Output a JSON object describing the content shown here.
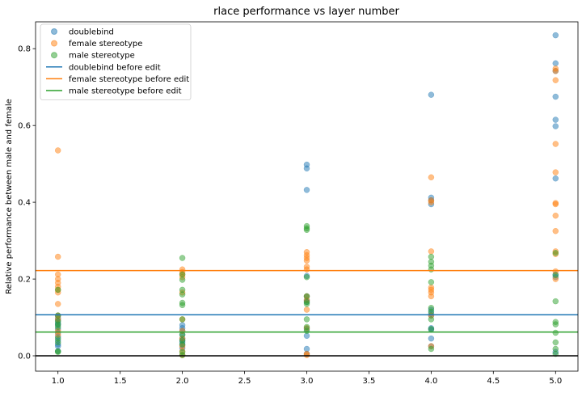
{
  "chart_data": {
    "type": "scatter",
    "title": "rlace performance vs layer number",
    "xlabel": "",
    "ylabel": "Relative performance between male and female",
    "xlim": [
      0.82,
      5.18
    ],
    "ylim": [
      -0.04,
      0.87
    ],
    "xticks": [
      "1.0",
      "1.5",
      "2.0",
      "2.5",
      "3.0",
      "3.5",
      "4.0",
      "4.5",
      "5.0"
    ],
    "yticks": [
      "0.0",
      "0.2",
      "0.4",
      "0.6",
      "0.8"
    ],
    "legend_position": "top-left",
    "grid": false,
    "series": [
      {
        "name": "doublebind",
        "color": "#1f77b4",
        "points": [
          [
            1,
            0.105
          ],
          [
            1,
            0.098
          ],
          [
            1,
            0.092
          ],
          [
            1,
            0.085
          ],
          [
            1,
            0.08
          ],
          [
            1,
            0.07
          ],
          [
            1,
            0.06
          ],
          [
            1,
            0.05
          ],
          [
            1,
            0.04
          ],
          [
            1,
            0.03
          ],
          [
            1,
            0.025
          ],
          [
            1,
            0.012
          ],
          [
            2,
            0.08
          ],
          [
            2,
            0.072
          ],
          [
            2,
            0.065
          ],
          [
            2,
            0.055
          ],
          [
            2,
            0.045
          ],
          [
            2,
            0.04
          ],
          [
            2,
            0.035
          ],
          [
            2,
            0.028
          ],
          [
            2,
            0.02
          ],
          [
            3,
            0.498
          ],
          [
            3,
            0.488
          ],
          [
            3,
            0.432
          ],
          [
            3,
            0.208
          ],
          [
            3,
            0.155
          ],
          [
            3,
            0.145
          ],
          [
            3,
            0.14
          ],
          [
            3,
            0.07
          ],
          [
            3,
            0.052
          ],
          [
            3,
            0.018
          ],
          [
            3,
            0.005
          ],
          [
            4,
            0.68
          ],
          [
            4,
            0.412
          ],
          [
            4,
            0.405
          ],
          [
            4,
            0.395
          ],
          [
            4,
            0.12
          ],
          [
            4,
            0.11
          ],
          [
            4,
            0.105
          ],
          [
            4,
            0.072
          ],
          [
            4,
            0.068
          ],
          [
            4,
            0.045
          ],
          [
            4,
            0.025
          ],
          [
            5,
            0.835
          ],
          [
            5,
            0.762
          ],
          [
            5,
            0.742
          ],
          [
            5,
            0.675
          ],
          [
            5,
            0.615
          ],
          [
            5,
            0.598
          ],
          [
            5,
            0.462
          ],
          [
            5,
            0.212
          ],
          [
            5,
            0.205
          ],
          [
            5,
            0.01
          ]
        ]
      },
      {
        "name": "female stereotype",
        "color": "#ff7f0e",
        "points": [
          [
            1,
            0.535
          ],
          [
            1,
            0.258
          ],
          [
            1,
            0.212
          ],
          [
            1,
            0.2
          ],
          [
            1,
            0.19
          ],
          [
            1,
            0.18
          ],
          [
            1,
            0.172
          ],
          [
            1,
            0.165
          ],
          [
            1,
            0.135
          ],
          [
            1,
            0.105
          ],
          [
            1,
            0.095
          ],
          [
            1,
            0.065
          ],
          [
            1,
            0.055
          ],
          [
            2,
            0.225
          ],
          [
            2,
            0.218
          ],
          [
            2,
            0.212
          ],
          [
            2,
            0.205
          ],
          [
            2,
            0.165
          ],
          [
            2,
            0.095
          ],
          [
            2,
            0.065
          ],
          [
            2,
            0.045
          ],
          [
            2,
            0.025
          ],
          [
            2,
            0.012
          ],
          [
            2,
            0.002
          ],
          [
            3,
            0.27
          ],
          [
            3,
            0.262
          ],
          [
            3,
            0.255
          ],
          [
            3,
            0.248
          ],
          [
            3,
            0.232
          ],
          [
            3,
            0.225
          ],
          [
            3,
            0.155
          ],
          [
            3,
            0.145
          ],
          [
            3,
            0.12
          ],
          [
            3,
            0.072
          ],
          [
            3,
            0.005
          ],
          [
            3,
            0.002
          ],
          [
            4,
            0.465
          ],
          [
            4,
            0.405
          ],
          [
            4,
            0.4
          ],
          [
            4,
            0.272
          ],
          [
            4,
            0.178
          ],
          [
            4,
            0.172
          ],
          [
            4,
            0.165
          ],
          [
            4,
            0.155
          ],
          [
            4,
            0.105
          ],
          [
            4,
            0.025
          ],
          [
            5,
            0.748
          ],
          [
            5,
            0.742
          ],
          [
            5,
            0.718
          ],
          [
            5,
            0.552
          ],
          [
            5,
            0.478
          ],
          [
            5,
            0.398
          ],
          [
            5,
            0.395
          ],
          [
            5,
            0.365
          ],
          [
            5,
            0.325
          ],
          [
            5,
            0.272
          ],
          [
            5,
            0.265
          ],
          [
            5,
            0.22
          ],
          [
            5,
            0.2
          ]
        ]
      },
      {
        "name": "male stereotype",
        "color": "#2ca02c",
        "points": [
          [
            1,
            0.172
          ],
          [
            1,
            0.105
          ],
          [
            1,
            0.09
          ],
          [
            1,
            0.082
          ],
          [
            1,
            0.075
          ],
          [
            1,
            0.045
          ],
          [
            1,
            0.035
          ],
          [
            1,
            0.012
          ],
          [
            1,
            0.01
          ],
          [
            2,
            0.255
          ],
          [
            2,
            0.212
          ],
          [
            2,
            0.198
          ],
          [
            2,
            0.172
          ],
          [
            2,
            0.16
          ],
          [
            2,
            0.138
          ],
          [
            2,
            0.132
          ],
          [
            2,
            0.095
          ],
          [
            2,
            0.055
          ],
          [
            2,
            0.04
          ],
          [
            2,
            0.03
          ],
          [
            2,
            0.01
          ],
          [
            2,
            0.002
          ],
          [
            3,
            0.338
          ],
          [
            3,
            0.332
          ],
          [
            3,
            0.328
          ],
          [
            3,
            0.205
          ],
          [
            3,
            0.155
          ],
          [
            3,
            0.14
          ],
          [
            3,
            0.135
          ],
          [
            3,
            0.095
          ],
          [
            3,
            0.075
          ],
          [
            3,
            0.065
          ],
          [
            4,
            0.258
          ],
          [
            4,
            0.245
          ],
          [
            4,
            0.235
          ],
          [
            4,
            0.225
          ],
          [
            4,
            0.192
          ],
          [
            4,
            0.125
          ],
          [
            4,
            0.115
          ],
          [
            4,
            0.095
          ],
          [
            4,
            0.07
          ],
          [
            4,
            0.018
          ],
          [
            5,
            0.268
          ],
          [
            5,
            0.21
          ],
          [
            5,
            0.142
          ],
          [
            5,
            0.088
          ],
          [
            5,
            0.082
          ],
          [
            5,
            0.06
          ],
          [
            5,
            0.035
          ],
          [
            5,
            0.018
          ],
          [
            5,
            0.005
          ]
        ]
      }
    ],
    "hlines": [
      {
        "name": "doublebind before edit",
        "y": 0.107,
        "color": "#1f77b4"
      },
      {
        "name": "female stereotype before edit",
        "y": 0.222,
        "color": "#ff7f0e"
      },
      {
        "name": "male stereotype before edit",
        "y": 0.062,
        "color": "#2ca02c"
      },
      {
        "name": "",
        "y": 0.0,
        "color": "#000000"
      }
    ]
  }
}
